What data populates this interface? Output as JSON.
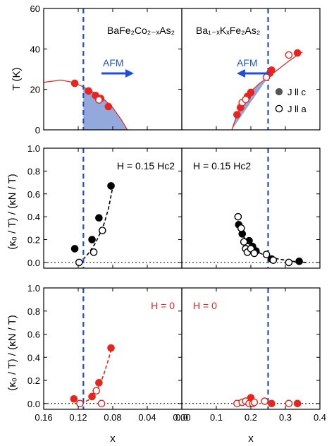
{
  "figure": {
    "ylabel_top": "T (K)",
    "ylabel_mid": "(κ₀ / T) / (κN / T)",
    "ylabel_bot": "(κ₀ / T) / (κN / T)",
    "xlabel": "x"
  },
  "colors": {
    "red": "#e8241c",
    "blue_line": "#1f4fd8",
    "blue_arrow": "#1f4fd8",
    "shade": "#93a9dc",
    "black": "#000000"
  },
  "chart_data": [
    {
      "id": "a",
      "type": "scatter",
      "panel": "top-left",
      "title": "BaFe₂Co₂₋ₓAs₂",
      "ylabel": "T (K)",
      "xlim": [
        0.16,
        0.0
      ],
      "ylim": [
        0,
        60
      ],
      "yticks": [
        0,
        20,
        40,
        60
      ],
      "xticks": [
        0.16,
        0.12,
        0.08,
        0.04,
        0.0
      ],
      "afm_boundary_x": 0.114,
      "annotation": "AFM",
      "annotation_arrow": "right",
      "dome_curve": {
        "x": [
          0.16,
          0.14,
          0.125,
          0.114,
          0.1,
          0.09,
          0.08,
          0.07,
          0.063
        ],
        "y": [
          23.5,
          24.6,
          23.4,
          21.2,
          18.0,
          15.0,
          11.0,
          5.0,
          0
        ]
      },
      "series": [
        {
          "values": [
            [
              0.124,
              23.0
            ],
            [
              0.108,
              19.2
            ]
          ],
          "style": "filled-red"
        },
        {
          "values": [
            [
              0.1,
              17.0
            ],
            [
              0.094,
              15.5
            ],
            [
              0.085,
              11.5
            ]
          ],
          "style": "filled-red"
        },
        {
          "values": [
            [
              0.096,
              14.8
            ]
          ],
          "style": "open-red"
        }
      ]
    },
    {
      "id": "b",
      "type": "scatter",
      "panel": "top-right",
      "title": "Ba₁₋ₓKₓFe₂As₂",
      "xlim": [
        0.0,
        0.4
      ],
      "ylim": [
        0,
        60
      ],
      "afm_boundary_x": 0.25,
      "annotation": "AFM",
      "annotation_arrow": "left",
      "dome_curve": {
        "x": [
          0.145,
          0.16,
          0.18,
          0.2,
          0.225,
          0.25,
          0.28,
          0.31,
          0.34,
          0.35
        ],
        "y": [
          0,
          7.5,
          14.5,
          19.0,
          23.0,
          26.0,
          30.0,
          34.0,
          37.5,
          38.5
        ]
      },
      "legend": [
        "J ll c",
        "J ll a"
      ],
      "legend_position": "right",
      "series": [
        {
          "name": "J ll c",
          "values": [
            [
              0.16,
              7.5
            ],
            [
              0.17,
              11.0
            ],
            [
              0.19,
              16.5
            ],
            [
              0.2,
              18.5
            ],
            [
              0.255,
              28.0
            ],
            [
              0.26,
              29.5
            ],
            [
              0.335,
              38.0
            ]
          ],
          "style": "filled-red"
        },
        {
          "name": "J ll a",
          "values": [
            [
              0.175,
              13.5
            ],
            [
              0.185,
              15.0
            ],
            [
              0.245,
              26.0
            ],
            [
              0.31,
              37.0
            ]
          ],
          "style": "open-red"
        }
      ]
    },
    {
      "id": "c",
      "type": "scatter",
      "panel": "middle-left",
      "label": "H = 0.15 Hc2",
      "xlim": [
        0.16,
        0.0
      ],
      "ylim": [
        -0.05,
        1.0
      ],
      "yticks": [
        0.0,
        0.2,
        0.4,
        0.6,
        0.8,
        1.0
      ],
      "afm_boundary_x": 0.114,
      "fit_curve": {
        "x": [
          0.12,
          0.114,
          0.108,
          0.1,
          0.095,
          0.09,
          0.085,
          0.08
        ],
        "y": [
          0.0,
          0.03,
          0.08,
          0.17,
          0.25,
          0.34,
          0.47,
          0.66
        ]
      },
      "series": [
        {
          "name": "J ll c",
          "values": [
            [
              0.124,
              0.12
            ],
            [
              0.104,
              0.2
            ],
            [
              0.096,
              0.39
            ],
            [
              0.082,
              0.67
            ]
          ],
          "style": "filled-black"
        },
        {
          "name": "J ll a",
          "values": [
            [
              0.119,
              0.0
            ],
            [
              0.102,
              0.09
            ],
            [
              0.092,
              0.28
            ]
          ],
          "style": "open-black"
        }
      ]
    },
    {
      "id": "d",
      "type": "scatter",
      "panel": "middle-right",
      "label": "H = 0.15 Hc2",
      "xlim": [
        0.0,
        0.4
      ],
      "ylim": [
        -0.05,
        1.0
      ],
      "afm_boundary_x": 0.25,
      "fit_curve": {
        "x": [
          0.16,
          0.18,
          0.2,
          0.22,
          0.25,
          0.28,
          0.32,
          0.36
        ],
        "y": [
          0.36,
          0.22,
          0.14,
          0.09,
          0.05,
          0.03,
          0.01,
          0.0
        ]
      },
      "series": [
        {
          "name": "J ll c",
          "values": [
            [
              0.165,
              0.33
            ],
            [
              0.175,
              0.25
            ],
            [
              0.195,
              0.19
            ],
            [
              0.205,
              0.14
            ],
            [
              0.215,
              0.1
            ],
            [
              0.26,
              0.03
            ],
            [
              0.34,
              0.01
            ]
          ],
          "style": "filled-black"
        },
        {
          "name": "J ll a",
          "values": [
            [
              0.163,
              0.4
            ],
            [
              0.172,
              0.3
            ],
            [
              0.18,
              0.18
            ],
            [
              0.185,
              0.12
            ],
            [
              0.19,
              0.09
            ],
            [
              0.2,
              0.12
            ],
            [
              0.21,
              0.08
            ],
            [
              0.245,
              0.07
            ],
            [
              0.265,
              0.02
            ],
            [
              0.31,
              0.0
            ]
          ],
          "style": "open-black"
        }
      ]
    },
    {
      "id": "e",
      "type": "scatter",
      "panel": "bottom-left",
      "label": "H = 0",
      "xlabel": "x",
      "xlim": [
        0.16,
        0.0
      ],
      "ylim": [
        -0.05,
        1.0
      ],
      "afm_boundary_x": 0.114,
      "xticks": [
        0.16,
        0.12,
        0.08,
        0.04,
        0.0
      ],
      "fit_curve": {
        "x": [
          0.124,
          0.114,
          0.105,
          0.1,
          0.095,
          0.09,
          0.085,
          0.082
        ],
        "y": [
          0.0,
          0.01,
          0.04,
          0.09,
          0.16,
          0.26,
          0.38,
          0.46
        ]
      },
      "series": [
        {
          "name": "J ll c",
          "values": [
            [
              0.125,
              0.04
            ],
            [
              0.104,
              0.06
            ],
            [
              0.096,
              0.18
            ],
            [
              0.082,
              0.48
            ]
          ],
          "style": "filled-red"
        },
        {
          "name": "J ll a",
          "values": [
            [
              0.118,
              0.0
            ],
            [
              0.099,
              0.11
            ],
            [
              0.093,
              0.0
            ]
          ],
          "style": "open-red"
        }
      ]
    },
    {
      "id": "f",
      "type": "scatter",
      "panel": "bottom-right",
      "label": "H = 0",
      "xlabel": "x",
      "xlim": [
        0.0,
        0.4
      ],
      "ylim": [
        -0.05,
        1.0
      ],
      "afm_boundary_x": 0.25,
      "xticks": [
        0.0,
        0.1,
        0.2,
        0.3,
        0.4
      ],
      "series": [
        {
          "name": "J ll c",
          "values": [
            [
              0.19,
              0.02
            ],
            [
              0.2,
              0.05
            ],
            [
              0.26,
              0.0
            ],
            [
              0.335,
              0.0
            ]
          ],
          "style": "filled-red"
        },
        {
          "name": "J ll a",
          "values": [
            [
              0.16,
              0.0
            ],
            [
              0.175,
              0.01
            ],
            [
              0.185,
              0.02
            ],
            [
              0.195,
              0.0
            ],
            [
              0.205,
              0.0
            ],
            [
              0.21,
              0.01
            ],
            [
              0.24,
              0.02
            ],
            [
              0.31,
              0.0
            ]
          ],
          "style": "open-red"
        }
      ]
    }
  ]
}
